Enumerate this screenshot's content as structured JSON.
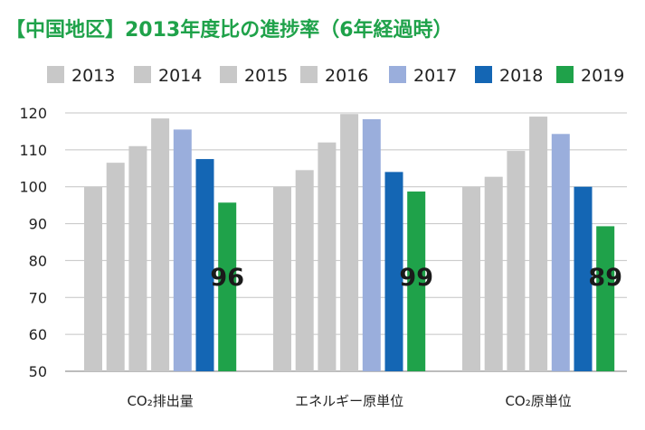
{
  "chart_data": {
    "type": "bar",
    "title": "【中国地区】2013年度比の進捗率（6年経過時）",
    "categories": [
      "CO₂排出量",
      "エネルギー原単位",
      "CO₂原単位"
    ],
    "series": [
      {
        "name": "2013",
        "color": "#c8c8c8",
        "values": [
          100,
          100,
          100
        ]
      },
      {
        "name": "2014",
        "color": "#c8c8c8",
        "values": [
          106.5,
          104.5,
          102.7
        ]
      },
      {
        "name": "2015",
        "color": "#c8c8c8",
        "values": [
          111,
          112,
          109.7
        ]
      },
      {
        "name": "2016",
        "color": "#c8c8c8",
        "values": [
          118.5,
          119.7,
          119
        ]
      },
      {
        "name": "2017",
        "color": "#9aaedc",
        "values": [
          115.5,
          118.3,
          114.3
        ]
      },
      {
        "name": "2018",
        "color": "#1466b4",
        "values": [
          107.5,
          104,
          100
        ]
      },
      {
        "name": "2019",
        "color": "#1fa24a",
        "values": [
          95.7,
          98.7,
          89.3
        ]
      }
    ],
    "data_labels": [
      "96",
      "99",
      "89"
    ],
    "ylim": [
      50,
      120
    ],
    "yticks": [
      "50",
      "60",
      "70",
      "80",
      "90",
      "100",
      "110",
      "120"
    ],
    "grid": true,
    "legend": "top"
  }
}
